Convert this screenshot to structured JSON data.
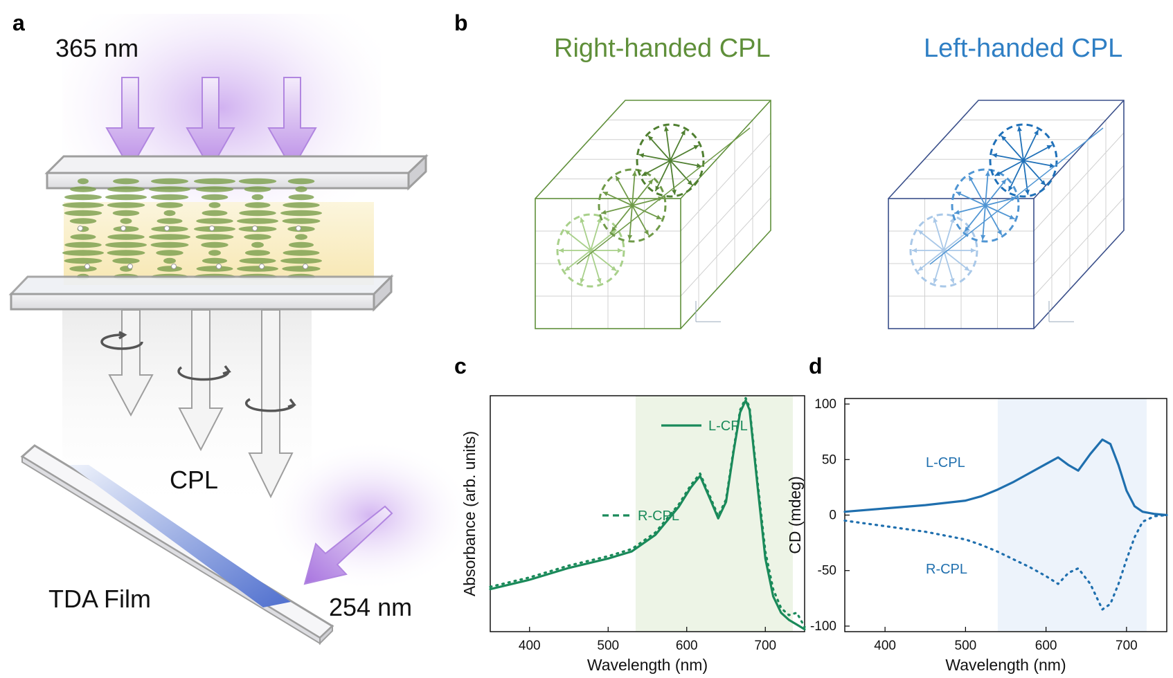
{
  "panels": {
    "a": {
      "letter": "a",
      "excitation": "365 nm",
      "cpl": "CPL",
      "film": "TDA Film",
      "uv": "254 nm"
    },
    "b": {
      "letter": "b",
      "right_title": "Right-handed CPL",
      "left_title": "Left-handed CPL",
      "right_color": "#5f8f3a",
      "left_color": "#2f7fc4"
    },
    "c": {
      "letter": "c"
    },
    "d": {
      "letter": "d"
    }
  },
  "chart_data": [
    {
      "panel": "c",
      "type": "line",
      "title": "",
      "xlabel": "Wavelength (nm)",
      "ylabel": "Absorbance (arb. units)",
      "xlim": [
        350,
        750
      ],
      "ylim": [
        0,
        1
      ],
      "xticks": [
        400,
        500,
        600,
        700
      ],
      "yticks": [],
      "highlight": {
        "from": 535,
        "to": 735,
        "color": "#edf4e6"
      },
      "line_color": "#1a8a5a",
      "series": [
        {
          "name": "L-CPL",
          "style": "solid",
          "x": [
            350,
            400,
            450,
            500,
            530,
            560,
            590,
            605,
            617,
            630,
            640,
            650,
            660,
            668,
            675,
            680,
            690,
            700,
            710,
            720,
            730,
            740,
            750
          ],
          "y": [
            0.18,
            0.22,
            0.27,
            0.31,
            0.34,
            0.41,
            0.53,
            0.61,
            0.66,
            0.56,
            0.48,
            0.55,
            0.77,
            0.93,
            0.98,
            0.94,
            0.62,
            0.31,
            0.15,
            0.08,
            0.05,
            0.03,
            0.01
          ]
        },
        {
          "name": "R-CPL",
          "style": "dotted",
          "x": [
            350,
            400,
            450,
            500,
            530,
            560,
            590,
            605,
            617,
            630,
            640,
            650,
            660,
            668,
            675,
            680,
            690,
            700,
            710,
            720,
            730,
            740,
            750
          ],
          "y": [
            0.19,
            0.23,
            0.28,
            0.32,
            0.35,
            0.42,
            0.54,
            0.62,
            0.67,
            0.57,
            0.49,
            0.56,
            0.78,
            0.94,
            0.99,
            0.95,
            0.64,
            0.34,
            0.18,
            0.1,
            0.07,
            0.08,
            0.02
          ]
        }
      ],
      "annotations": [
        "L-CPL",
        "R-CPL"
      ]
    },
    {
      "panel": "d",
      "type": "line",
      "title": "",
      "xlabel": "Wavelength (nm)",
      "ylabel": "CD (mdeg)",
      "xlim": [
        350,
        750
      ],
      "ylim": [
        -105,
        105
      ],
      "xticks": [
        400,
        500,
        600,
        700
      ],
      "yticks": [
        100,
        50,
        0,
        -50,
        -100
      ],
      "highlight": {
        "from": 540,
        "to": 725,
        "color": "#edf3fb"
      },
      "line_color": "#1f6fae",
      "series": [
        {
          "name": "L-CPL",
          "style": "solid",
          "x": [
            350,
            400,
            450,
            500,
            520,
            540,
            560,
            580,
            600,
            615,
            628,
            640,
            655,
            670,
            680,
            690,
            700,
            710,
            720,
            735,
            750
          ],
          "y": [
            3,
            6,
            9,
            13,
            17,
            23,
            30,
            38,
            46,
            52,
            45,
            40,
            55,
            68,
            64,
            45,
            22,
            8,
            3,
            1,
            0
          ]
        },
        {
          "name": "R-CPL",
          "style": "dotted",
          "x": [
            350,
            400,
            450,
            500,
            520,
            540,
            560,
            580,
            600,
            615,
            628,
            640,
            655,
            670,
            680,
            690,
            700,
            710,
            720,
            735,
            750
          ],
          "y": [
            -5,
            -10,
            -15,
            -22,
            -27,
            -33,
            -40,
            -47,
            -55,
            -62,
            -52,
            -48,
            -62,
            -85,
            -80,
            -62,
            -40,
            -20,
            -6,
            -1,
            0
          ]
        }
      ],
      "annotations": [
        "L-CPL",
        "R-CPL"
      ]
    }
  ]
}
